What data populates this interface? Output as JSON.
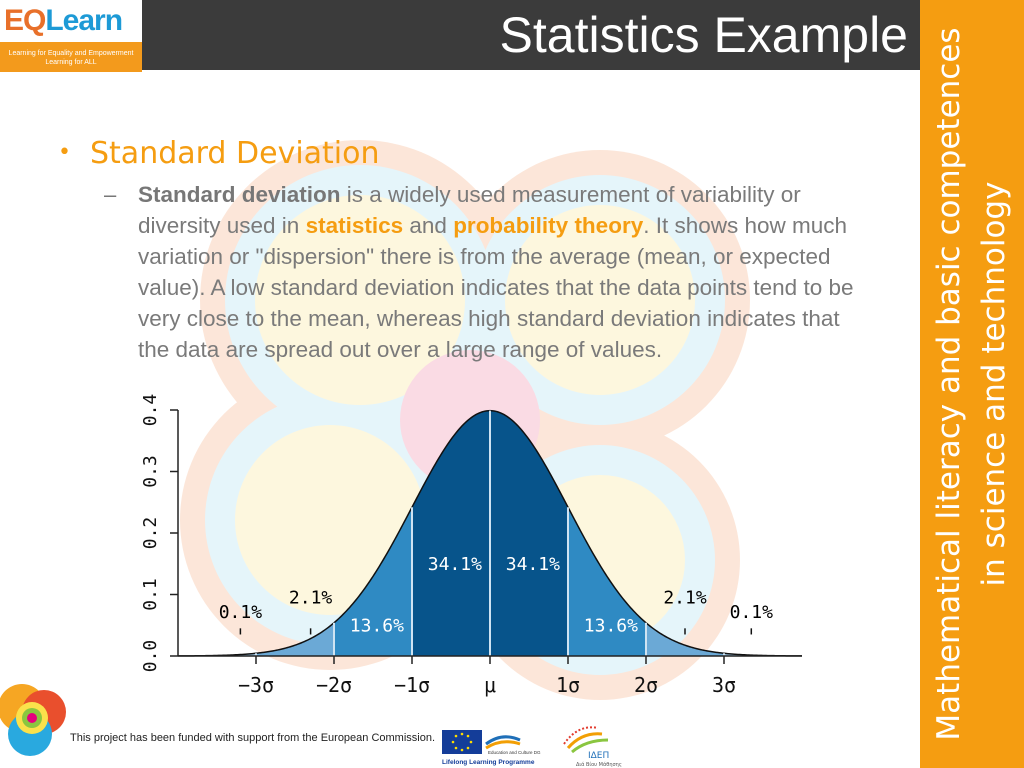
{
  "slide": {
    "title": "Statistics Example",
    "side_text": "Mathematical literacy and basic competences in science and technology"
  },
  "logo": {
    "eq": "EQ",
    "learn": "Learn",
    "tagline_1": "Learning for Equality and Empowerment",
    "tagline_2": "Learning for ALL"
  },
  "content": {
    "bullet": "•",
    "heading": "Standard Deviation",
    "dash": "–",
    "p_term": "Standard deviation",
    "p_1": " is a widely used measurement of variability or diversity used in ",
    "p_stats": "statistics",
    "p_2": " and ",
    "p_prob": "probability theory",
    "p_3": ". It shows how much variation or \"dispersion\" there is from the average (mean, or expected value). A low standard deviation indicates that the data points tend to be very close to the mean, whereas high standard deviation indicates that the data are spread out over a large range of values."
  },
  "chart_data": {
    "type": "area",
    "x": [
      -4,
      -3,
      -2,
      -1,
      0,
      1,
      2,
      3,
      4
    ],
    "xticklabels": [
      "−3σ",
      "−2σ",
      "−1σ",
      "μ",
      "1σ",
      "2σ",
      "3σ"
    ],
    "xtick_values": [
      -3,
      -2,
      -1,
      0,
      1,
      2,
      3
    ],
    "ylim": [
      0,
      0.4
    ],
    "yticks": [
      0.0,
      0.1,
      0.2,
      0.3,
      0.4
    ],
    "yticklabels": [
      "0.0",
      "0.1",
      "0.2",
      "0.3",
      "0.4"
    ],
    "xlim": [
      -4,
      4
    ],
    "curve": "normal pdf, mean 0, sd 1",
    "bands": [
      {
        "from": -4,
        "to": -3,
        "color": "#9bc7e6"
      },
      {
        "from": -3,
        "to": -2,
        "color": "#6ba9d6"
      },
      {
        "from": -2,
        "to": -1,
        "color": "#2f8ac3"
      },
      {
        "from": -1,
        "to": 0,
        "color": "#07548b"
      },
      {
        "from": 0,
        "to": 1,
        "color": "#07548b"
      },
      {
        "from": 1,
        "to": 2,
        "color": "#2f8ac3"
      },
      {
        "from": 2,
        "to": 3,
        "color": "#6ba9d6"
      },
      {
        "from": 3,
        "to": 4,
        "color": "#9bc7e6"
      }
    ],
    "labels": [
      {
        "text": "34.1%",
        "x": -0.45,
        "y": 0.14,
        "color": "#ffffff"
      },
      {
        "text": "34.1%",
        "x": 0.55,
        "y": 0.14,
        "color": "#ffffff"
      },
      {
        "text": "13.6%",
        "x": -1.45,
        "y": 0.04,
        "color": "#ffffff"
      },
      {
        "text": "13.6%",
        "x": 1.55,
        "y": 0.04,
        "color": "#ffffff"
      },
      {
        "text": "2.1%",
        "x": -2.3,
        "y": 0.085,
        "color": "#000000"
      },
      {
        "text": "2.1%",
        "x": 2.5,
        "y": 0.085,
        "color": "#000000"
      },
      {
        "text": "0.1%",
        "x": -3.2,
        "y": 0.062,
        "color": "#000000"
      },
      {
        "text": "0.1%",
        "x": 3.35,
        "y": 0.062,
        "color": "#000000"
      }
    ]
  },
  "footer": {
    "funding": "This project has been funded with support from the European Commission.",
    "lifelong": "Lifelong Learning Programme",
    "edu_culture": "Education and Culture DG",
    "idep": "ΙΔΕΠ",
    "idep_sub": "Διά Βίου Μάθησης"
  },
  "colors": {
    "orange": "#f59d11",
    "title_bg": "#3b3b3b",
    "dark_blue": "#07548b"
  }
}
